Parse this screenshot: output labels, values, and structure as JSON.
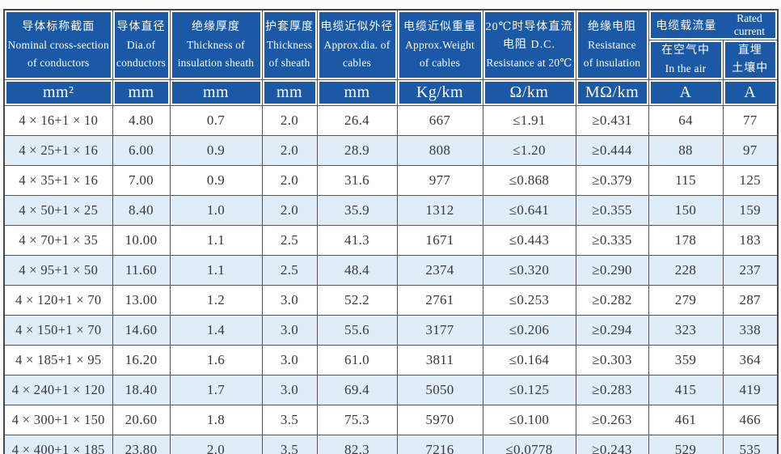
{
  "table": {
    "columns": [
      {
        "line1": "导体标称截面",
        "line2": "Nominal cross-section",
        "line3": "of conductors",
        "unit": "mm²"
      },
      {
        "line1": "导体直径",
        "line2": "Dia.of",
        "line3": "conductors",
        "unit": "mm"
      },
      {
        "line1": "绝缘厚度",
        "line2": "Thickness of",
        "line3": "insulation sheath",
        "unit": "mm"
      },
      {
        "line1": "护套厚度",
        "line2": "Thickness",
        "line3": "of sheath",
        "unit": "mm"
      },
      {
        "line1": "电缆近似外径",
        "line2": "Approx.dia. of",
        "line3": "cables",
        "unit": "mm"
      },
      {
        "line1": "电缆近似重量",
        "line2": "Approx.Weight",
        "line3": "of cables",
        "unit": "Kg/km"
      },
      {
        "line1": "20℃时导体直流",
        "line2": "电阻 D.C.",
        "line3": "Resistance at 20℃",
        "unit": "Ω/km"
      },
      {
        "line1": "绝缘电阻",
        "line2": "Resistance",
        "line3": "of insulation",
        "unit": "MΩ/km"
      },
      {
        "line1": "在空气中",
        "line2": "In the air",
        "unit": "A"
      },
      {
        "line1": "直埋",
        "line2": "土壤中",
        "unit": "A"
      }
    ],
    "group_header": {
      "cn": "电缆载流量",
      "en": "Rated current"
    },
    "rows": [
      [
        "4 × 16+1 × 10",
        "4.80",
        "0.7",
        "2.0",
        "26.4",
        "667",
        "≤1.91",
        "≥0.431",
        "64",
        "77"
      ],
      [
        "4 × 25+1 × 16",
        "6.00",
        "0.9",
        "2.0",
        "28.9",
        "808",
        "≤1.20",
        "≥0.444",
        "88",
        "97"
      ],
      [
        "4 × 35+1 × 16",
        "7.00",
        "0.9",
        "2.0",
        "31.6",
        "977",
        "≤0.868",
        "≥0.379",
        "115",
        "125"
      ],
      [
        "4 × 50+1 × 25",
        "8.40",
        "1.0",
        "2.0",
        "35.9",
        "1312",
        "≤0.641",
        "≥0.355",
        "150",
        "159"
      ],
      [
        "4 × 70+1 × 35",
        "10.00",
        "1.1",
        "2.5",
        "41.3",
        "1671",
        "≤0.443",
        "≥0.335",
        "178",
        "183"
      ],
      [
        "4 × 95+1 × 50",
        "11.60",
        "1.1",
        "2.5",
        "48.4",
        "2374",
        "≤0.320",
        "≥0.290",
        "228",
        "237"
      ],
      [
        "4 × 120+1 × 70",
        "13.00",
        "1.2",
        "3.0",
        "52.2",
        "2761",
        "≤0.253",
        "≥0.282",
        "279",
        "287"
      ],
      [
        "4 × 150+1 × 70",
        "14.60",
        "1.4",
        "3.0",
        "55.6",
        "3177",
        "≤0.206",
        "≥0.294",
        "323",
        "338"
      ],
      [
        "4 × 185+1 × 95",
        "16.20",
        "1.6",
        "3.0",
        "61.0",
        "3811",
        "≤0.164",
        "≥0.303",
        "359",
        "364"
      ],
      [
        "4 × 240+1 × 120",
        "18.40",
        "1.7",
        "3.0",
        "69.4",
        "5050",
        "≤0.125",
        "≥0.283",
        "415",
        "419"
      ],
      [
        "4 × 300+1 × 150",
        "20.60",
        "1.8",
        "3.5",
        "75.3",
        "5970",
        "≤0.100",
        "≥0.263",
        "461",
        "466"
      ],
      [
        "4 × 400+1 × 185",
        "23.80",
        "2.0",
        "3.5",
        "82.3",
        "7216",
        "≤0.0778",
        "≥0.243",
        "529",
        "535"
      ]
    ]
  },
  "colors": {
    "header_bg": "#1b58a6",
    "stripe_bg": "#e0edf7",
    "grid": "#55555a",
    "body_text": "#38383b"
  }
}
